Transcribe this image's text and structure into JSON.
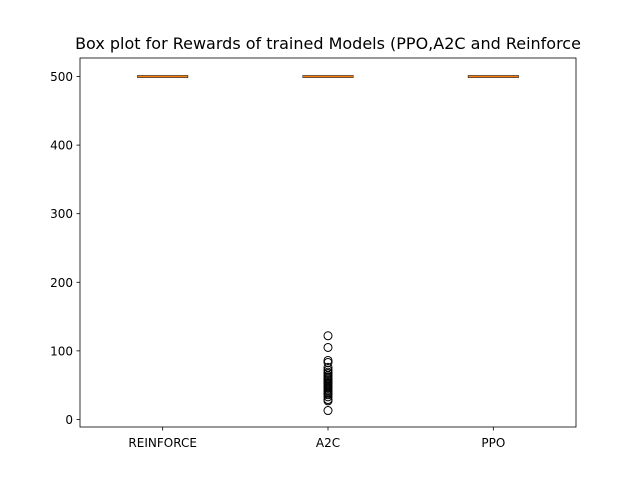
{
  "chart_data": {
    "type": "box",
    "title": "Box plot for Rewards of trained Models (PPO,A2C and Reinforce",
    "xlabel": "",
    "ylabel": "",
    "categories": [
      "REINFORCE",
      "A2C",
      "PPO"
    ],
    "ylim": [
      -11,
      527
    ],
    "yticks": [
      0,
      100,
      200,
      300,
      400,
      500
    ],
    "grid": false,
    "boxes": [
      {
        "category": "REINFORCE",
        "min": 500,
        "q1": 500,
        "median": 500,
        "q3": 500,
        "max": 500,
        "outliers": []
      },
      {
        "category": "A2C",
        "min": 500,
        "q1": 500,
        "median": 500,
        "q3": 500,
        "max": 500,
        "outliers": [
          122,
          105,
          86,
          83,
          76,
          72,
          69,
          67,
          64,
          62,
          60,
          58,
          56,
          54,
          52,
          50,
          48,
          46,
          44,
          42,
          40,
          38,
          36,
          33,
          29,
          27,
          13
        ]
      },
      {
        "category": "PPO",
        "min": 500,
        "q1": 500,
        "median": 500,
        "q3": 500,
        "max": 500,
        "outliers": []
      }
    ],
    "colors": {
      "median": "#ff7f0e",
      "box": "#000000",
      "flier": "#000000"
    }
  }
}
